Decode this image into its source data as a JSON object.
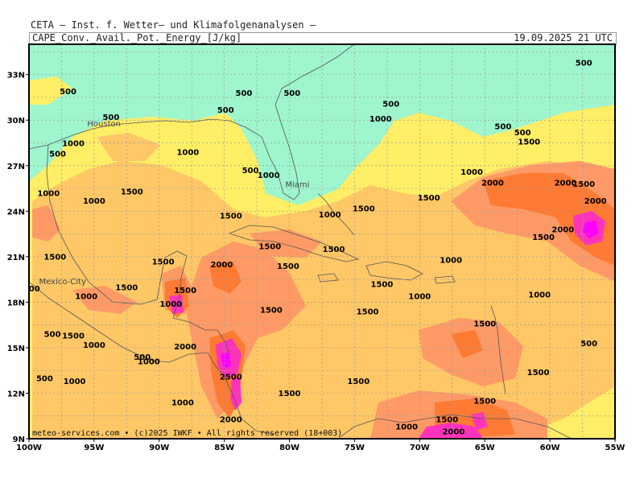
{
  "header": {
    "line1": "CETA — Inst. f. Wetter— und Klimafolgenanalysen —",
    "line2": "CAPE_Conv._Avail._Pot._Energy_[J/kg]",
    "valid_time": "19.09.2025 21 UTC"
  },
  "map": {
    "region": "Gulf of Mexico / Caribbean",
    "lon_range": [
      -100,
      -55
    ],
    "lat_range": [
      9,
      35
    ],
    "lon_ticks": [
      "100W",
      "95W",
      "90W",
      "85W",
      "80W",
      "75W",
      "70W",
      "65W",
      "60W",
      "55W"
    ],
    "lat_ticks": [
      "33N",
      "30N",
      "27N",
      "24N",
      "21N",
      "18N",
      "15N",
      "12N",
      "9N"
    ],
    "colors": {
      "below_500": "#9ff5cc",
      "c500_1000": "#ffee66",
      "c1000_1500": "#ffc766",
      "c1500_2000": "#ff9a66",
      "c2000_2500": "#ff7a33",
      "c2500_plus": "#ff33bb",
      "max": "#ff00ff"
    },
    "cities": [
      {
        "name": "Houston",
        "lon": -95.4,
        "lat": 29.8
      },
      {
        "name": "Miami",
        "lon": -80.2,
        "lat": 25.8
      },
      {
        "name": "Mexico-City",
        "lon": -99.1,
        "lat": 19.4
      }
    ],
    "contour_labels": [
      {
        "text": "500",
        "lon": -97.0,
        "lat": 31.7
      },
      {
        "text": "500",
        "lon": -93.7,
        "lat": 30.0
      },
      {
        "text": "500",
        "lon": -83.5,
        "lat": 31.6
      },
      {
        "text": "500",
        "lon": -79.8,
        "lat": 31.6
      },
      {
        "text": "500",
        "lon": -84.9,
        "lat": 30.5
      },
      {
        "text": "500",
        "lon": -57.4,
        "lat": 33.6
      },
      {
        "text": "500",
        "lon": -72.2,
        "lat": 30.9
      },
      {
        "text": "500",
        "lon": -63.6,
        "lat": 29.4
      },
      {
        "text": "500",
        "lon": -62.1,
        "lat": 29.0
      },
      {
        "text": "500",
        "lon": -97.8,
        "lat": 27.6
      },
      {
        "text": "500",
        "lon": -83.0,
        "lat": 26.5
      },
      {
        "text": "500",
        "lon": -98.2,
        "lat": 15.7
      },
      {
        "text": "500",
        "lon": -91.3,
        "lat": 14.2
      },
      {
        "text": "500",
        "lon": -98.8,
        "lat": 12.8
      },
      {
        "text": "500",
        "lon": -57.0,
        "lat": 15.1
      },
      {
        "text": "000",
        "lon": -99.8,
        "lat": 18.7
      },
      {
        "text": "1000",
        "lon": -73.0,
        "lat": 29.9
      },
      {
        "text": "1000",
        "lon": -96.6,
        "lat": 28.3
      },
      {
        "text": "1000",
        "lon": -87.8,
        "lat": 27.7
      },
      {
        "text": "1000",
        "lon": -81.6,
        "lat": 26.2
      },
      {
        "text": "1000",
        "lon": -98.5,
        "lat": 25.0
      },
      {
        "text": "1000",
        "lon": -95.0,
        "lat": 24.5
      },
      {
        "text": "1000",
        "lon": -76.9,
        "lat": 23.6
      },
      {
        "text": "1000",
        "lon": -66.0,
        "lat": 26.4
      },
      {
        "text": "1000",
        "lon": -67.6,
        "lat": 20.6
      },
      {
        "text": "1000",
        "lon": -95.6,
        "lat": 18.2
      },
      {
        "text": "1000",
        "lon": -89.1,
        "lat": 17.7
      },
      {
        "text": "1000",
        "lon": -95.0,
        "lat": 15.0
      },
      {
        "text": "1000",
        "lon": -90.8,
        "lat": 13.9
      },
      {
        "text": "1000",
        "lon": -96.5,
        "lat": 12.6
      },
      {
        "text": "1000",
        "lon": -88.2,
        "lat": 11.2
      },
      {
        "text": "1000",
        "lon": -70.0,
        "lat": 18.2
      },
      {
        "text": "1000",
        "lon": -60.8,
        "lat": 18.3
      },
      {
        "text": "1000",
        "lon": -71.0,
        "lat": 9.6
      },
      {
        "text": "1500",
        "lon": -61.6,
        "lat": 28.4
      },
      {
        "text": "1500",
        "lon": -57.4,
        "lat": 25.6
      },
      {
        "text": "1500",
        "lon": -92.1,
        "lat": 25.1
      },
      {
        "text": "1500",
        "lon": -84.5,
        "lat": 23.5
      },
      {
        "text": "1500",
        "lon": -74.3,
        "lat": 24.0
      },
      {
        "text": "1500",
        "lon": -69.3,
        "lat": 24.7
      },
      {
        "text": "1500",
        "lon": -98.0,
        "lat": 20.8
      },
      {
        "text": "1500",
        "lon": -89.7,
        "lat": 20.5
      },
      {
        "text": "1500",
        "lon": -80.1,
        "lat": 20.2
      },
      {
        "text": "1500",
        "lon": -81.5,
        "lat": 21.5
      },
      {
        "text": "1500",
        "lon": -76.6,
        "lat": 21.3
      },
      {
        "text": "1500",
        "lon": -72.9,
        "lat": 19.0
      },
      {
        "text": "1500",
        "lon": -60.5,
        "lat": 22.1
      },
      {
        "text": "1500",
        "lon": -92.5,
        "lat": 18.8
      },
      {
        "text": "1500",
        "lon": -88.0,
        "lat": 18.6
      },
      {
        "text": "1500",
        "lon": -96.6,
        "lat": 15.6
      },
      {
        "text": "1500",
        "lon": -81.4,
        "lat": 17.3
      },
      {
        "text": "1500",
        "lon": -74.0,
        "lat": 17.2
      },
      {
        "text": "1500",
        "lon": -65.0,
        "lat": 16.4
      },
      {
        "text": "1500",
        "lon": -74.7,
        "lat": 12.6
      },
      {
        "text": "1500",
        "lon": -80.0,
        "lat": 11.8
      },
      {
        "text": "1500",
        "lon": -60.9,
        "lat": 13.2
      },
      {
        "text": "1500",
        "lon": -65.0,
        "lat": 11.3
      },
      {
        "text": "1500",
        "lon": -67.9,
        "lat": 10.1
      },
      {
        "text": "2000",
        "lon": -64.4,
        "lat": 25.7
      },
      {
        "text": "2000",
        "lon": -58.8,
        "lat": 25.7
      },
      {
        "text": "2000",
        "lon": -56.5,
        "lat": 24.5
      },
      {
        "text": "2000",
        "lon": -59.0,
        "lat": 22.6
      },
      {
        "text": "2000",
        "lon": -85.2,
        "lat": 20.3
      },
      {
        "text": "2000",
        "lon": -88.0,
        "lat": 14.9
      },
      {
        "text": "2000",
        "lon": -84.5,
        "lat": 10.1
      },
      {
        "text": "2000",
        "lon": -67.4,
        "lat": 9.3
      },
      {
        "text": "2500",
        "lon": -84.5,
        "lat": 12.9
      }
    ]
  },
  "footer": {
    "credit": "meteo-services.com • (c)2025 IWKF • All rights reserved (18+003)"
  }
}
